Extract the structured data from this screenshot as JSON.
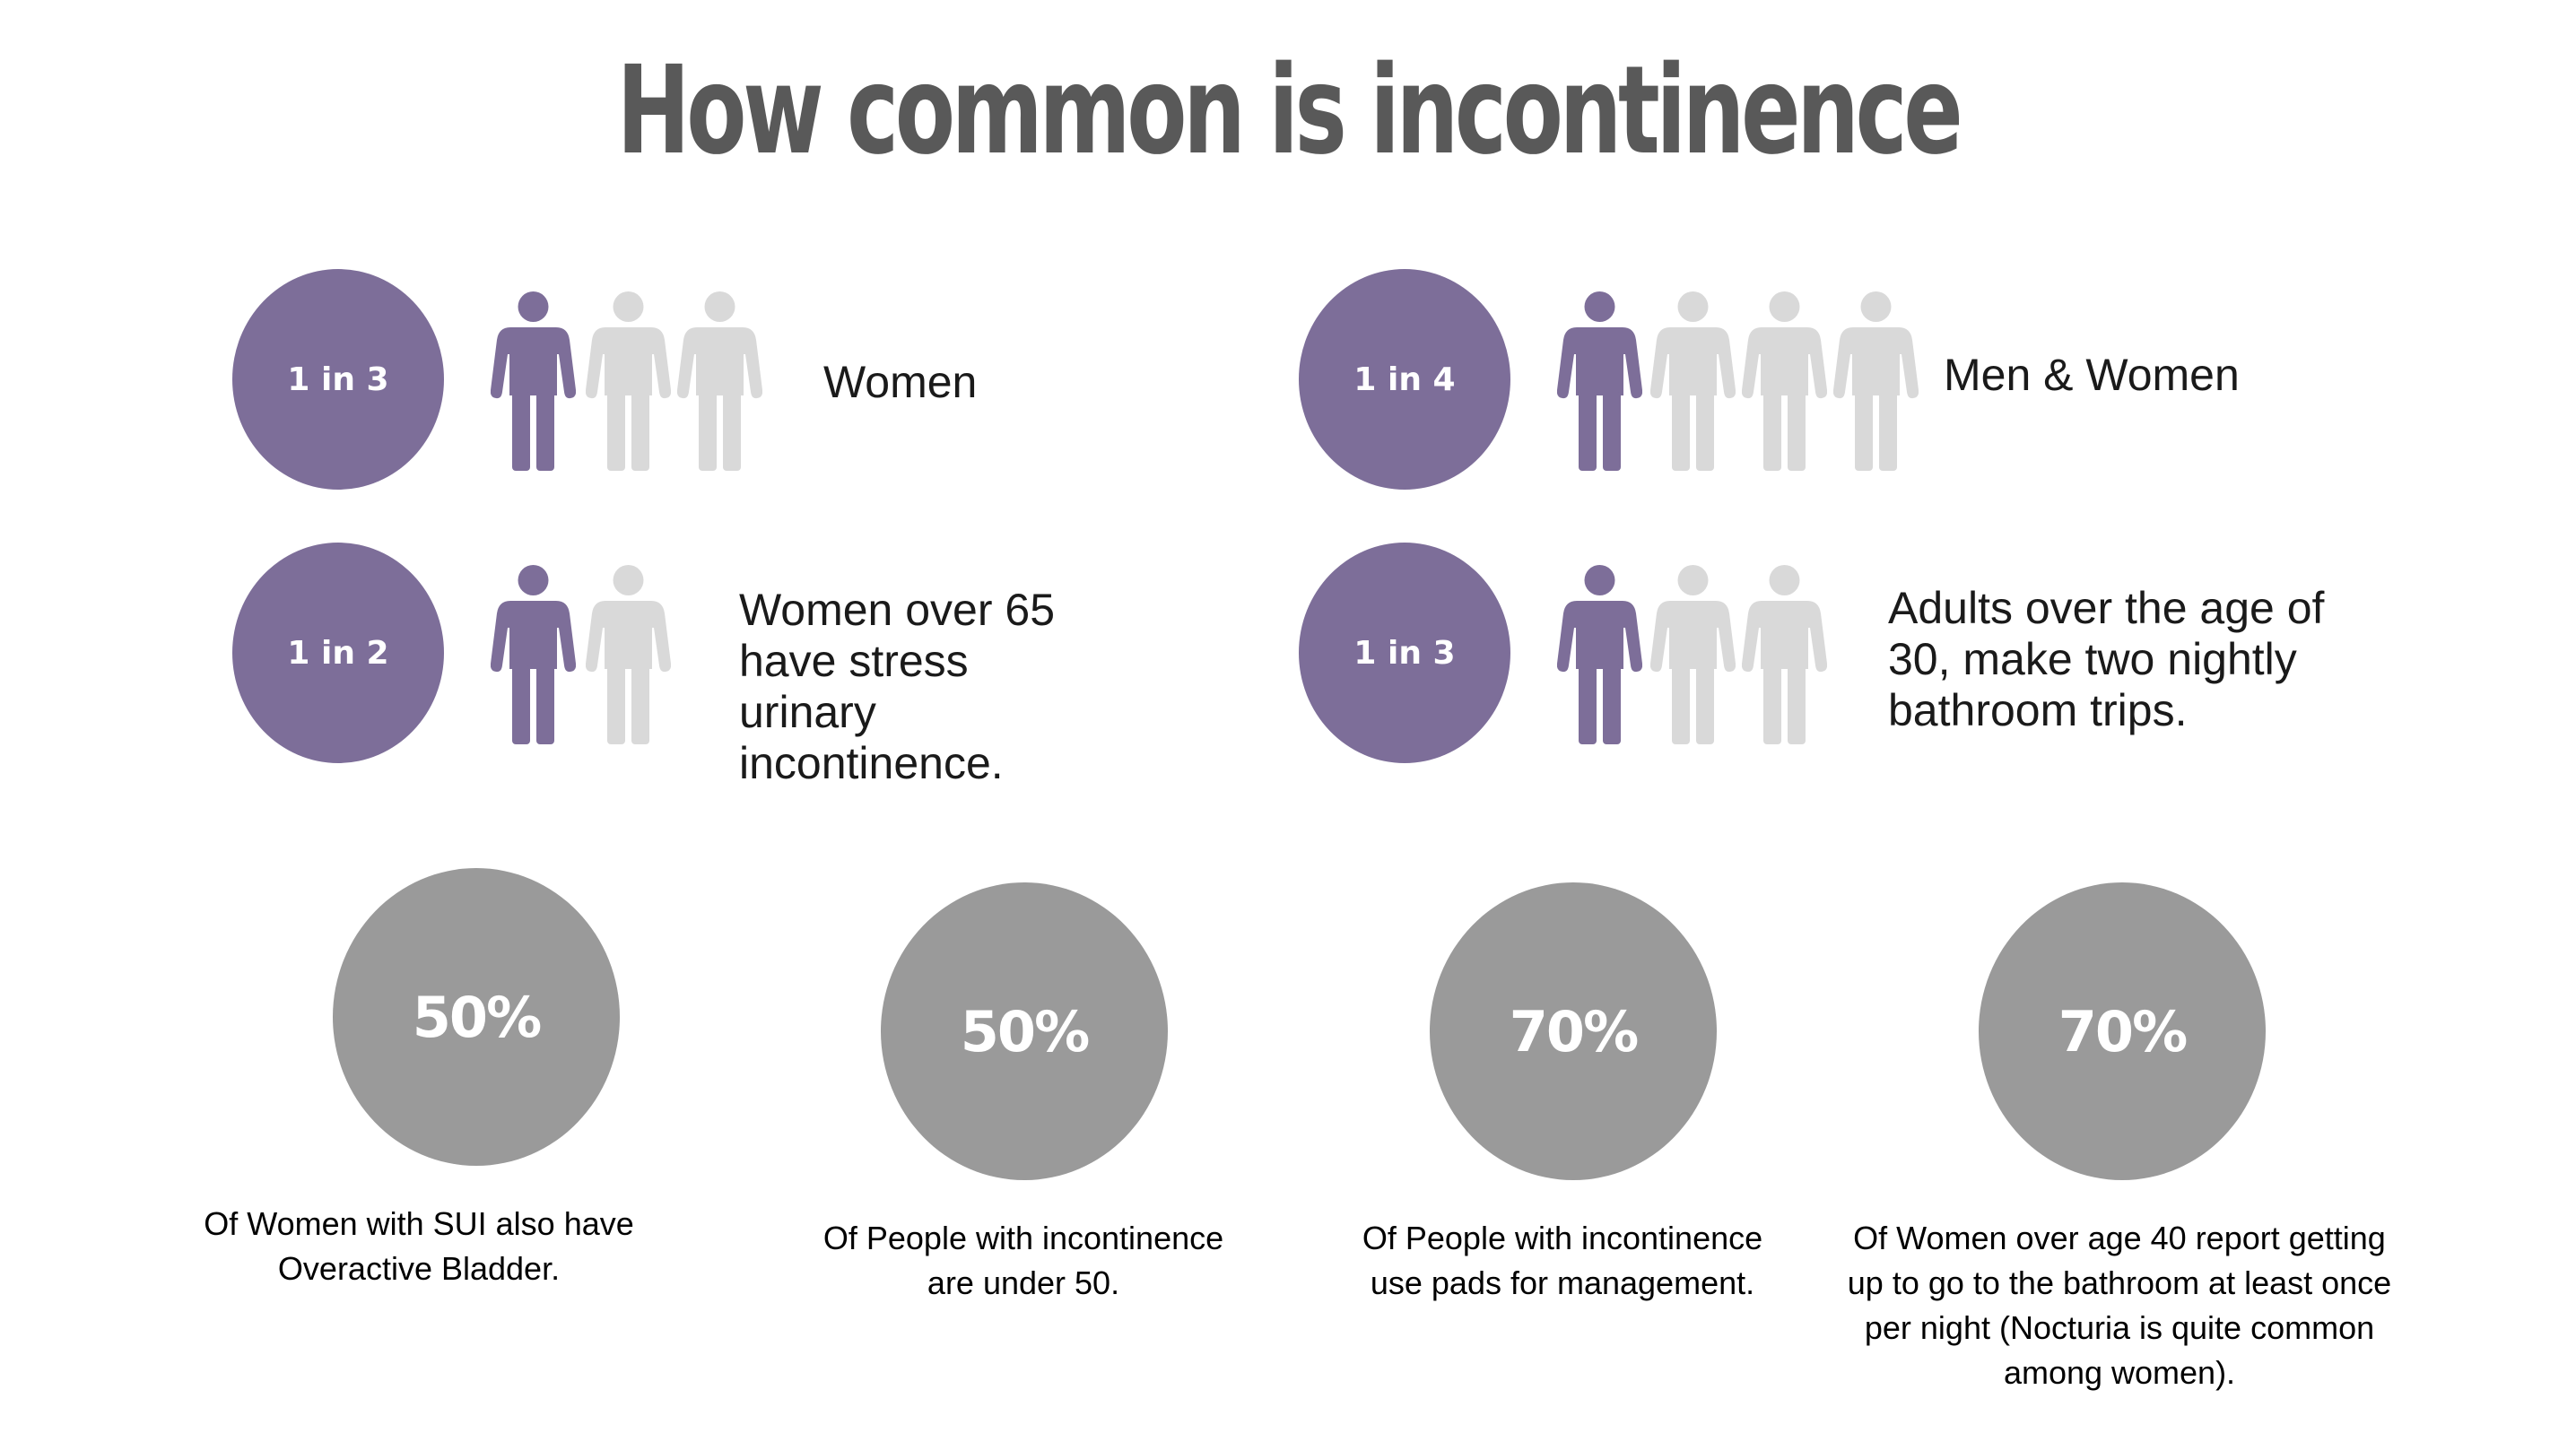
{
  "title": "How common is incontinence",
  "colors": {
    "accent_purple": "#7d6e99",
    "person_inactive": "#d9d9d9",
    "percent_circle": "#9a9a9a",
    "title_text": "#595959"
  },
  "icons": {
    "person": "person-icon"
  },
  "ratio_stats": [
    {
      "badge": "1 in 3",
      "highlighted": 1,
      "total": 3,
      "text": "Women"
    },
    {
      "badge": "1 in 4",
      "highlighted": 1,
      "total": 4,
      "text": "Men & Women"
    },
    {
      "badge": "1 in 2",
      "highlighted": 1,
      "total": 2,
      "text": "Women over 65 have stress urinary incontinence."
    },
    {
      "badge": "1 in 3",
      "highlighted": 1,
      "total": 3,
      "text": "Adults over the age of 30, make two nightly bathroom trips."
    }
  ],
  "percent_stats": [
    {
      "value": "50%",
      "caption": "Of Women with SUI also have Overactive Bladder."
    },
    {
      "value": "50%",
      "caption": "Of People with incontinence are under 50."
    },
    {
      "value": "70%",
      "caption": "Of People with incontinence use pads for management."
    },
    {
      "value": "70%",
      "caption": "Of Women over age 40 report getting up to go to the bathroom at least once per night (Nocturia is quite common among women)."
    }
  ]
}
